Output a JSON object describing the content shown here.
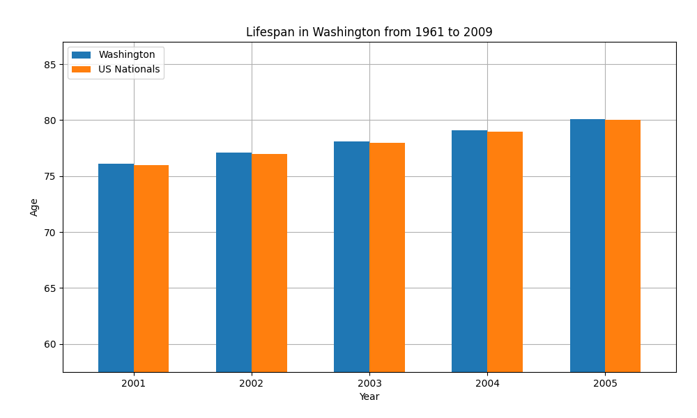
{
  "chart_data": {
    "type": "bar",
    "title": "Lifespan in Washington from 1961 to 2009",
    "x_label": "Year",
    "y_label": "Age",
    "categories": [
      "2001",
      "2002",
      "2003",
      "2004",
      "2005"
    ],
    "series": [
      {
        "name": "Washington",
        "values": [
          76.1,
          77.1,
          78.1,
          79.1,
          80.1
        ]
      },
      {
        "name": "US Nationals",
        "values": [
          76.0,
          77.0,
          78.0,
          79.0,
          80.0
        ]
      }
    ],
    "ylim": [
      57.5,
      87
    ],
    "yticks": [
      60,
      65,
      70,
      75,
      80,
      85
    ],
    "grid": true,
    "legend": "upper left"
  }
}
